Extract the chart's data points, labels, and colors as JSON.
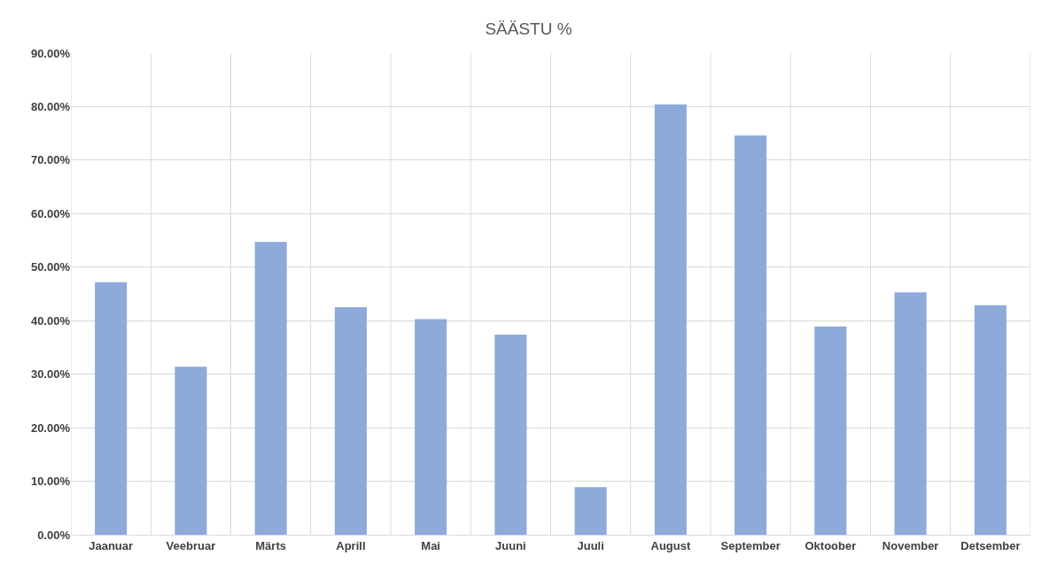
{
  "chart_data": {
    "type": "bar",
    "title": "SÄÄSTU %",
    "categories": [
      "Jaanuar",
      "Veebruar",
      "Märts",
      "Aprill",
      "Mai",
      "Juuni",
      "Juuli",
      "August",
      "September",
      "Oktoober",
      "November",
      "Detsember"
    ],
    "values": [
      47.2,
      31.4,
      54.7,
      42.5,
      40.3,
      37.4,
      8.9,
      80.4,
      74.6,
      38.9,
      45.3,
      42.9
    ],
    "color": "#8eaadb",
    "ylim": [
      0,
      90
    ],
    "yticks": [
      {
        "value": 0,
        "label": "0.00%"
      },
      {
        "value": 10,
        "label": "10.00%"
      },
      {
        "value": 20,
        "label": "20.00%"
      },
      {
        "value": 30,
        "label": "30.00%"
      },
      {
        "value": 40,
        "label": "40.00%"
      },
      {
        "value": 50,
        "label": "50.00%"
      },
      {
        "value": 60,
        "label": "60.00%"
      },
      {
        "value": 70,
        "label": "70.00%"
      },
      {
        "value": 80,
        "label": "80.00%"
      },
      {
        "value": 90,
        "label": "90.00%"
      }
    ],
    "grid": true
  }
}
